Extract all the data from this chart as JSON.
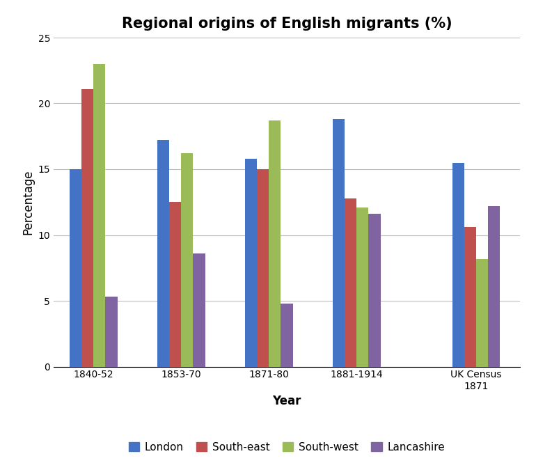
{
  "title": "Regional origins of English migrants (%)",
  "xlabel": "Year",
  "ylabel": "Percentage",
  "categories": [
    "1840-52",
    "1853-70",
    "1871-80",
    "1881-1914",
    "UK Census\n1871"
  ],
  "series": {
    "London": [
      15.0,
      17.2,
      15.8,
      18.8,
      15.5
    ],
    "South-east": [
      21.1,
      12.5,
      15.0,
      12.8,
      10.6
    ],
    "South-west": [
      23.0,
      16.2,
      18.7,
      12.1,
      8.2
    ],
    "Lancashire": [
      5.3,
      8.6,
      4.8,
      11.6,
      12.2
    ]
  },
  "colors": {
    "London": "#4472C4",
    "South-east": "#C0504D",
    "South-west": "#9BBB59",
    "Lancashire": "#8064A2"
  },
  "ylim": [
    0,
    25
  ],
  "yticks": [
    0,
    5,
    10,
    15,
    20,
    25
  ],
  "bar_width": 0.15,
  "background_color": "#FFFFFF",
  "grid_color": "#BBBBBB",
  "title_fontsize": 15,
  "axis_label_fontsize": 12,
  "tick_fontsize": 10,
  "legend_fontsize": 11
}
